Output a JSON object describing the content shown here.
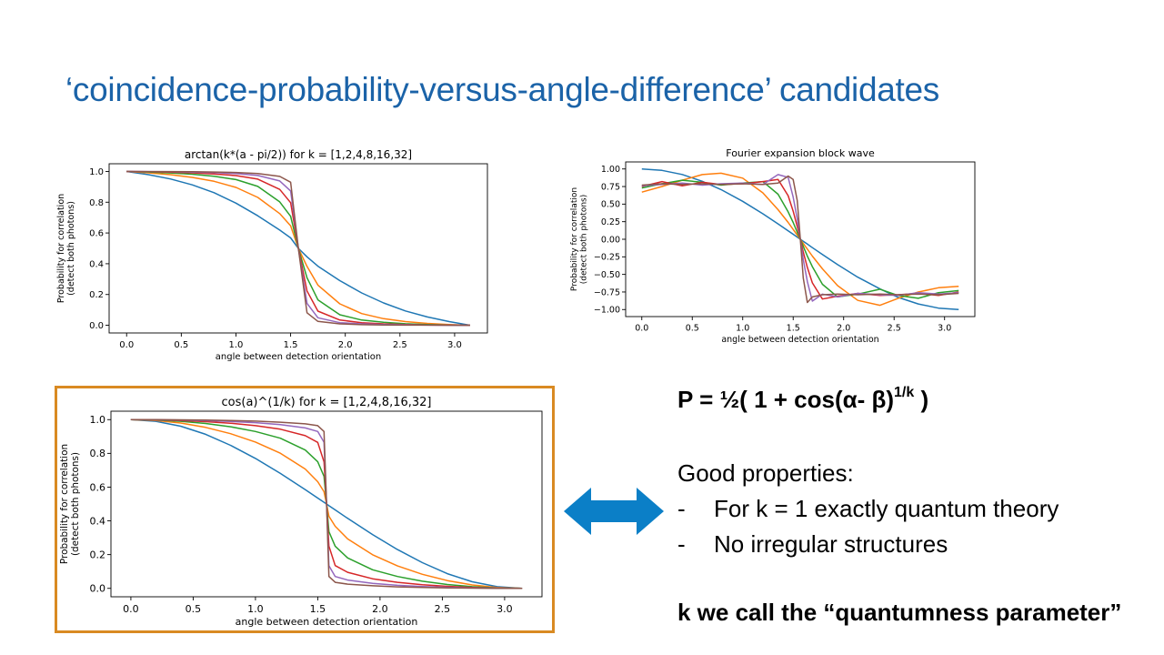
{
  "slide": {
    "title": "‘coincidence-probability-versus-angle-difference’ candidates"
  },
  "text": {
    "formula_prefix": "P = ½( 1 + cos(α- β)",
    "formula_exponent": "1/k",
    "formula_suffix": " )",
    "properties_heading": "Good properties:",
    "property_bullet": "-",
    "properties": [
      "For k = 1 exactly quantum theory",
      "No irregular structures"
    ],
    "conclusion": "k we call the “quantumness parameter”"
  },
  "colors": {
    "title": "#1b63a8",
    "highlight_frame": "#d98a22",
    "arrow": "#0b7fc7",
    "series": [
      "#1f77b4",
      "#ff7f0e",
      "#2ca02c",
      "#d62728",
      "#9467bd",
      "#8c564b"
    ]
  },
  "icons": {
    "arrow": "double-headed-arrow-icon"
  },
  "chart_data": [
    {
      "id": "arctan",
      "type": "line",
      "title": "arctan(k*(a - pi/2)) for k = [1,2,4,8,16,32]",
      "xlabel": "angle between detection orientation",
      "ylabel": [
        "Probability for correlation",
        "(detect both photons)"
      ],
      "xlim": [
        -0.16,
        3.3
      ],
      "ylim": [
        -0.05,
        1.05
      ],
      "xticks": [
        0.0,
        0.5,
        1.0,
        1.5,
        2.0,
        2.5,
        3.0
      ],
      "xtick_labels": [
        "0.0",
        "0.5",
        "1.0",
        "1.5",
        "2.0",
        "2.5",
        "3.0"
      ],
      "yticks": [
        0.0,
        0.2,
        0.4,
        0.6,
        0.8,
        1.0
      ],
      "ytick_labels": [
        "0.0",
        "0.2",
        "0.4",
        "0.6",
        "0.8",
        "1.0"
      ],
      "grid": false,
      "legend": "none",
      "x": [
        0.0,
        0.2,
        0.4,
        0.6,
        0.8,
        1.0,
        1.2,
        1.4,
        1.5,
        1.571,
        1.65,
        1.75,
        1.95,
        2.15,
        2.35,
        2.55,
        2.75,
        2.95,
        3.14
      ],
      "series": [
        {
          "k": 1,
          "values": [
            1.0,
            0.979,
            0.951,
            0.913,
            0.862,
            0.794,
            0.712,
            0.619,
            0.568,
            0.5,
            0.445,
            0.384,
            0.29,
            0.21,
            0.145,
            0.093,
            0.054,
            0.024,
            0.0
          ]
        },
        {
          "k": 2,
          "values": [
            1.0,
            0.991,
            0.979,
            0.961,
            0.936,
            0.896,
            0.831,
            0.726,
            0.646,
            0.5,
            0.383,
            0.261,
            0.139,
            0.076,
            0.043,
            0.024,
            0.012,
            0.005,
            0.0
          ]
        },
        {
          "k": 4,
          "values": [
            1.0,
            0.996,
            0.99,
            0.982,
            0.969,
            0.947,
            0.903,
            0.802,
            0.708,
            0.5,
            0.309,
            0.165,
            0.068,
            0.034,
            0.019,
            0.01,
            0.005,
            0.002,
            0.0
          ]
        },
        {
          "k": 8,
          "values": [
            1.0,
            0.998,
            0.995,
            0.991,
            0.984,
            0.973,
            0.95,
            0.883,
            0.797,
            0.5,
            0.223,
            0.092,
            0.034,
            0.017,
            0.009,
            0.005,
            0.002,
            0.001,
            0.0
          ]
        },
        {
          "k": 16,
          "values": [
            1.0,
            0.999,
            0.998,
            0.995,
            0.992,
            0.986,
            0.974,
            0.938,
            0.873,
            0.5,
            0.143,
            0.049,
            0.017,
            0.009,
            0.005,
            0.003,
            0.001,
            0.0,
            0.0
          ]
        },
        {
          "k": 32,
          "values": [
            1.0,
            0.999,
            0.999,
            0.998,
            0.996,
            0.993,
            0.987,
            0.968,
            0.93,
            0.5,
            0.081,
            0.025,
            0.009,
            0.004,
            0.002,
            0.001,
            0.001,
            0.0,
            0.0
          ]
        }
      ]
    },
    {
      "id": "fourier",
      "type": "line",
      "title": "Fourier expansion block wave",
      "xlabel": "angle between detection orientation",
      "ylabel": [
        "Probability for correlation",
        "(detect both photons)"
      ],
      "xlim": [
        -0.16,
        3.3
      ],
      "ylim": [
        -1.1,
        1.1
      ],
      "xticks": [
        0.0,
        0.5,
        1.0,
        1.5,
        2.0,
        2.5,
        3.0
      ],
      "xtick_labels": [
        "0.0",
        "0.5",
        "1.0",
        "1.5",
        "2.0",
        "2.5",
        "3.0"
      ],
      "yticks": [
        -1.0,
        -0.75,
        -0.5,
        -0.25,
        0.0,
        0.25,
        0.5,
        0.75,
        1.0
      ],
      "ytick_labels": [
        "−1.00",
        "−0.75",
        "−0.50",
        "−0.25",
        "0.00",
        "0.25",
        "0.50",
        "0.75",
        "1.00"
      ],
      "grid": false,
      "legend": "none",
      "x": [
        0.0,
        0.2,
        0.4,
        0.6,
        0.785,
        1.0,
        1.2,
        1.35,
        1.45,
        1.5,
        1.54,
        1.571,
        1.6,
        1.64,
        1.69,
        1.79,
        1.94,
        2.14,
        2.36,
        2.54,
        2.74,
        2.94,
        3.14
      ],
      "series": [
        {
          "n": 1,
          "values": [
            1.0,
            0.98,
            0.921,
            0.825,
            0.707,
            0.54,
            0.362,
            0.219,
            0.12,
            0.071,
            0.031,
            0.0,
            -0.029,
            -0.069,
            -0.119,
            -0.217,
            -0.361,
            -0.54,
            -0.707,
            -0.827,
            -0.92,
            -0.98,
            -1.0
          ]
        },
        {
          "n": 2,
          "values": [
            0.67,
            0.75,
            0.84,
            0.92,
            0.94,
            0.87,
            0.66,
            0.42,
            0.24,
            0.14,
            0.06,
            0.0,
            -0.06,
            -0.14,
            -0.24,
            -0.42,
            -0.66,
            -0.87,
            -0.94,
            -0.84,
            -0.75,
            -0.69,
            -0.67
          ]
        },
        {
          "n": 3,
          "values": [
            0.73,
            0.79,
            0.84,
            0.81,
            0.77,
            0.8,
            0.82,
            0.64,
            0.39,
            0.24,
            0.1,
            0.0,
            -0.1,
            -0.24,
            -0.39,
            -0.64,
            -0.82,
            -0.78,
            -0.71,
            -0.8,
            -0.84,
            -0.76,
            -0.73
          ]
        },
        {
          "n": 5,
          "values": [
            0.75,
            0.82,
            0.76,
            0.81,
            0.78,
            0.79,
            0.82,
            0.85,
            0.62,
            0.4,
            0.18,
            0.0,
            -0.18,
            -0.4,
            -0.62,
            -0.85,
            -0.81,
            -0.77,
            -0.8,
            -0.79,
            -0.77,
            -0.8,
            -0.75
          ]
        },
        {
          "n": 8,
          "values": [
            0.76,
            0.78,
            0.8,
            0.77,
            0.79,
            0.8,
            0.78,
            0.92,
            0.88,
            0.6,
            0.29,
            0.0,
            -0.29,
            -0.6,
            -0.88,
            -0.78,
            -0.82,
            -0.77,
            -0.79,
            -0.8,
            -0.76,
            -0.78,
            -0.76
          ]
        },
        {
          "n": 16,
          "values": [
            0.77,
            0.79,
            0.78,
            0.79,
            0.78,
            0.79,
            0.78,
            0.8,
            0.9,
            0.85,
            0.55,
            0.0,
            -0.55,
            -0.9,
            -0.82,
            -0.79,
            -0.78,
            -0.79,
            -0.78,
            -0.79,
            -0.78,
            -0.79,
            -0.77
          ]
        }
      ]
    },
    {
      "id": "cosroot",
      "type": "line",
      "title": "cos(a)^(1/k) for k = [1,2,4,8,16,32]",
      "xlabel": "angle between detection orientation",
      "ylabel": [
        "Probability for correlation",
        "(detect both photons)"
      ],
      "xlim": [
        -0.16,
        3.3
      ],
      "ylim": [
        -0.05,
        1.05
      ],
      "xticks": [
        0.0,
        0.5,
        1.0,
        1.5,
        2.0,
        2.5,
        3.0
      ],
      "xtick_labels": [
        "0.0",
        "0.5",
        "1.0",
        "1.5",
        "2.0",
        "2.5",
        "3.0"
      ],
      "yticks": [
        0.0,
        0.2,
        0.4,
        0.6,
        0.8,
        1.0
      ],
      "ytick_labels": [
        "0.0",
        "0.2",
        "0.4",
        "0.6",
        "0.8",
        "1.0"
      ],
      "grid": false,
      "legend": "none",
      "x": [
        0.0,
        0.2,
        0.4,
        0.6,
        0.8,
        1.0,
        1.2,
        1.4,
        1.5,
        1.55,
        1.571,
        1.59,
        1.64,
        1.74,
        1.94,
        2.14,
        2.34,
        2.54,
        2.74,
        2.94,
        3.14
      ],
      "series": [
        {
          "k": 1,
          "values": [
            1.0,
            0.99,
            0.961,
            0.913,
            0.848,
            0.77,
            0.681,
            0.585,
            0.535,
            0.51,
            0.5,
            0.49,
            0.465,
            0.415,
            0.319,
            0.23,
            0.152,
            0.087,
            0.039,
            0.01,
            0.0
          ]
        },
        {
          "k": 2,
          "values": [
            1.0,
            0.995,
            0.98,
            0.954,
            0.917,
            0.867,
            0.801,
            0.707,
            0.632,
            0.573,
            0.5,
            0.427,
            0.368,
            0.293,
            0.199,
            0.133,
            0.083,
            0.046,
            0.02,
            0.005,
            0.0
          ]
        },
        {
          "k": 4,
          "values": [
            1.0,
            0.997,
            0.99,
            0.977,
            0.958,
            0.93,
            0.89,
            0.82,
            0.75,
            0.664,
            0.5,
            0.336,
            0.25,
            0.18,
            0.11,
            0.07,
            0.042,
            0.023,
            0.01,
            0.003,
            0.0
          ]
        },
        {
          "k": 8,
          "values": [
            1.0,
            0.999,
            0.995,
            0.988,
            0.979,
            0.964,
            0.943,
            0.905,
            0.865,
            0.75,
            0.5,
            0.25,
            0.135,
            0.095,
            0.057,
            0.036,
            0.021,
            0.012,
            0.005,
            0.001,
            0.0
          ]
        },
        {
          "k": 16,
          "values": [
            1.0,
            0.999,
            0.997,
            0.994,
            0.989,
            0.982,
            0.971,
            0.951,
            0.93,
            0.866,
            0.5,
            0.134,
            0.07,
            0.049,
            0.029,
            0.018,
            0.011,
            0.006,
            0.003,
            0.001,
            0.0
          ]
        },
        {
          "k": 32,
          "values": [
            1.0,
            1.0,
            0.999,
            0.997,
            0.995,
            0.991,
            0.985,
            0.975,
            0.964,
            0.93,
            0.5,
            0.07,
            0.036,
            0.025,
            0.015,
            0.009,
            0.005,
            0.003,
            0.001,
            0.0,
            0.0
          ]
        }
      ]
    }
  ]
}
